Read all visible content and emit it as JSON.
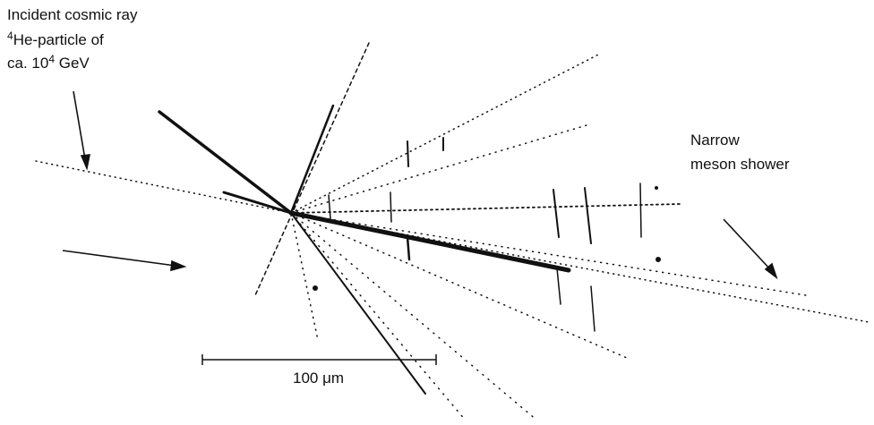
{
  "annotation_left": {
    "line1": "Incident cosmic ray",
    "line2": {
      "sup": "4",
      "text": "He-particle of"
    },
    "line3": {
      "text": "ca. 10",
      "sup": "4",
      "after": " GeV"
    }
  },
  "annotation_right": {
    "line1": "Narrow",
    "line2": "meson shower"
  },
  "scale_bar": {
    "label": "100 μm"
  }
}
